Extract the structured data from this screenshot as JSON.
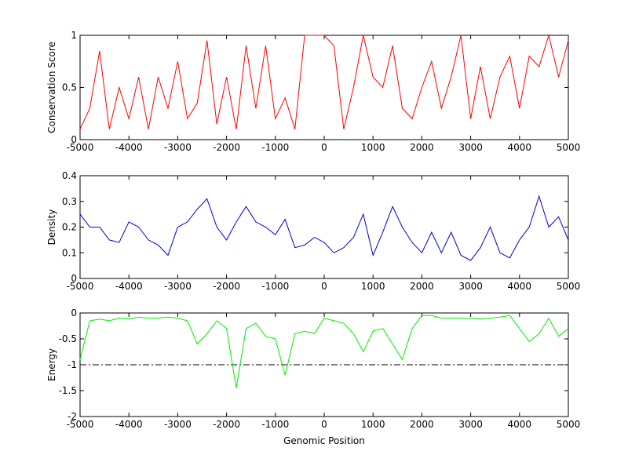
{
  "chart_data": [
    {
      "type": "line",
      "ylabel": "Conservation Score",
      "color": "#ff0000",
      "x": [
        -5000,
        -4800,
        -4600,
        -4400,
        -4200,
        -4000,
        -3800,
        -3600,
        -3400,
        -3200,
        -3000,
        -2800,
        -2600,
        -2400,
        -2200,
        -2000,
        -1800,
        -1600,
        -1400,
        -1200,
        -1000,
        -800,
        -600,
        -400,
        -200,
        0,
        200,
        400,
        600,
        800,
        1000,
        1200,
        1400,
        1600,
        1800,
        2000,
        2200,
        2400,
        2600,
        2800,
        3000,
        3200,
        3400,
        3600,
        3800,
        4000,
        4200,
        4400,
        4600,
        4800,
        5000
      ],
      "values": [
        0.1,
        0.3,
        0.85,
        0.1,
        0.5,
        0.2,
        0.6,
        0.1,
        0.6,
        0.3,
        0.75,
        0.2,
        0.35,
        0.95,
        0.15,
        0.6,
        0.1,
        0.9,
        0.3,
        0.9,
        0.2,
        0.4,
        0.1,
        1,
        1,
        1,
        0.9,
        0.1,
        0.5,
        1,
        0.6,
        0.5,
        0.9,
        0.3,
        0.2,
        0.5,
        0.75,
        0.3,
        0.6,
        1,
        0.2,
        0.7,
        0.2,
        0.6,
        0.8,
        0.3,
        0.8,
        0.7,
        1,
        0.6,
        0.95
      ],
      "xlim": [
        -5000,
        5000
      ],
      "xticks": [
        -5000,
        -4000,
        -3000,
        -2000,
        -1000,
        0,
        1000,
        2000,
        3000,
        4000,
        5000
      ],
      "ylim": [
        0,
        1
      ],
      "yticks": [
        0,
        0.5,
        1
      ]
    },
    {
      "type": "line",
      "ylabel": "Density",
      "color": "#0000cc",
      "x": [
        -5000,
        -4800,
        -4600,
        -4400,
        -4200,
        -4000,
        -3800,
        -3600,
        -3400,
        -3200,
        -3000,
        -2800,
        -2600,
        -2400,
        -2200,
        -2000,
        -1800,
        -1600,
        -1400,
        -1200,
        -1000,
        -800,
        -600,
        -400,
        -200,
        0,
        200,
        400,
        600,
        800,
        1000,
        1200,
        1400,
        1600,
        1800,
        2000,
        2200,
        2400,
        2600,
        2800,
        3000,
        3200,
        3400,
        3600,
        3800,
        4000,
        4200,
        4400,
        4600,
        4800,
        5000
      ],
      "values": [
        0.25,
        0.2,
        0.2,
        0.15,
        0.14,
        0.22,
        0.2,
        0.15,
        0.13,
        0.09,
        0.2,
        0.22,
        0.27,
        0.31,
        0.2,
        0.15,
        0.22,
        0.28,
        0.22,
        0.2,
        0.17,
        0.23,
        0.12,
        0.13,
        0.16,
        0.14,
        0.1,
        0.12,
        0.16,
        0.25,
        0.09,
        0.18,
        0.28,
        0.2,
        0.14,
        0.1,
        0.18,
        0.1,
        0.18,
        0.09,
        0.07,
        0.12,
        0.2,
        0.1,
        0.08,
        0.15,
        0.2,
        0.32,
        0.2,
        0.24,
        0.15
      ],
      "xlim": [
        -5000,
        5000
      ],
      "xticks": [
        -5000,
        -4000,
        -3000,
        -2000,
        -1000,
        0,
        1000,
        2000,
        3000,
        4000,
        5000
      ],
      "ylim": [
        0,
        0.4
      ],
      "yticks": [
        0,
        0.1,
        0.2,
        0.3,
        0.4
      ]
    },
    {
      "type": "line",
      "ylabel": "Energy",
      "xlabel": "Genomic Position",
      "color": "#00ee00",
      "x": [
        -5000,
        -4800,
        -4600,
        -4400,
        -4200,
        -4000,
        -3800,
        -3600,
        -3400,
        -3200,
        -3000,
        -2800,
        -2600,
        -2400,
        -2200,
        -2000,
        -1800,
        -1600,
        -1400,
        -1200,
        -1000,
        -800,
        -600,
        -400,
        -200,
        0,
        200,
        400,
        600,
        800,
        1000,
        1200,
        1400,
        1600,
        1800,
        2000,
        2200,
        2400,
        2600,
        2800,
        3000,
        3200,
        3400,
        3600,
        3800,
        4000,
        4200,
        4400,
        4600,
        4800,
        5000
      ],
      "values": [
        -0.9,
        -0.15,
        -0.12,
        -0.15,
        -0.1,
        -0.12,
        -0.08,
        -0.1,
        -0.1,
        -0.08,
        -0.1,
        -0.15,
        -0.6,
        -0.4,
        -0.15,
        -0.3,
        -1.45,
        -0.3,
        -0.2,
        -0.45,
        -0.5,
        -1.2,
        -0.4,
        -0.35,
        -0.4,
        -0.1,
        -0.15,
        -0.2,
        -0.4,
        -0.75,
        -0.35,
        -0.3,
        -0.6,
        -0.9,
        -0.3,
        -0.05,
        -0.05,
        -0.1,
        -0.1,
        -0.1,
        -0.1,
        -0.12,
        -0.1,
        -0.08,
        -0.05,
        -0.3,
        -0.55,
        -0.4,
        -0.1,
        -0.45,
        -0.3
      ],
      "threshold": -1,
      "xlim": [
        -5000,
        5000
      ],
      "xticks": [
        -5000,
        -4000,
        -3000,
        -2000,
        -1000,
        0,
        1000,
        2000,
        3000,
        4000,
        5000
      ],
      "ylim": [
        -2,
        0
      ],
      "yticks": [
        -2,
        -1.5,
        -1,
        -0.5,
        0
      ]
    }
  ]
}
